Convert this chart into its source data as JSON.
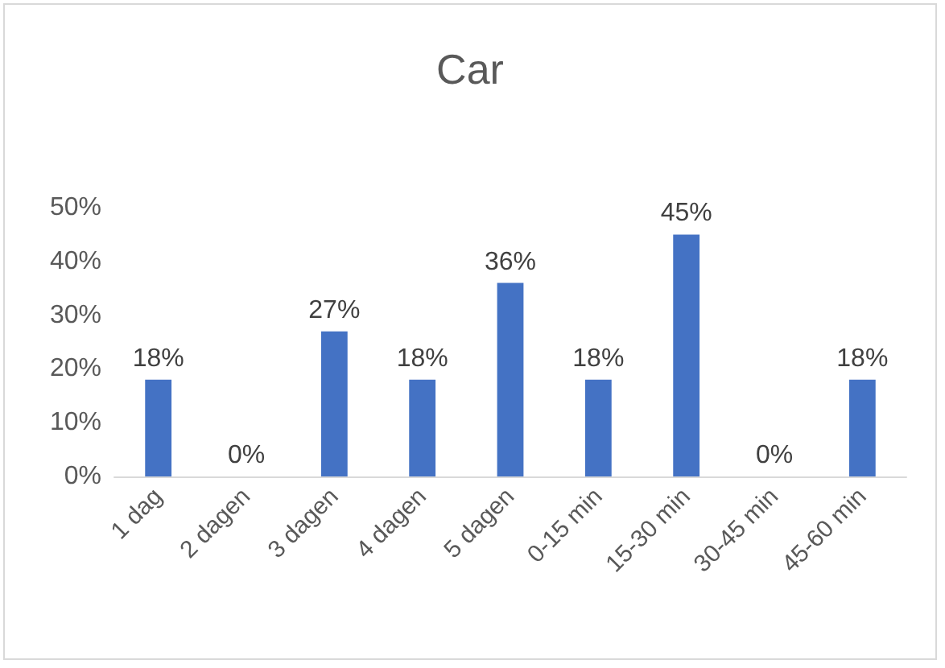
{
  "chart_data": {
    "type": "bar",
    "title": "Car",
    "categories": [
      "1 dag",
      "2 dagen",
      "3 dagen",
      "4 dagen",
      "5 dagen",
      "0-15 min",
      "15-30 min",
      "30-45 min",
      "45-60 min"
    ],
    "values": [
      18,
      0,
      27,
      18,
      36,
      18,
      45,
      0,
      18
    ],
    "value_labels": [
      "18%",
      "0%",
      "27%",
      "18%",
      "36%",
      "18%",
      "45%",
      "0%",
      "18%"
    ],
    "color": "#4472c4",
    "ylim": [
      0,
      50
    ],
    "yticks": [
      {
        "value": 0,
        "label": "0%"
      },
      {
        "value": 10,
        "label": "10%"
      },
      {
        "value": 20,
        "label": "20%"
      },
      {
        "value": 30,
        "label": "30%"
      },
      {
        "value": 40,
        "label": "40%"
      },
      {
        "value": 50,
        "label": "50%"
      }
    ],
    "grid": false
  }
}
